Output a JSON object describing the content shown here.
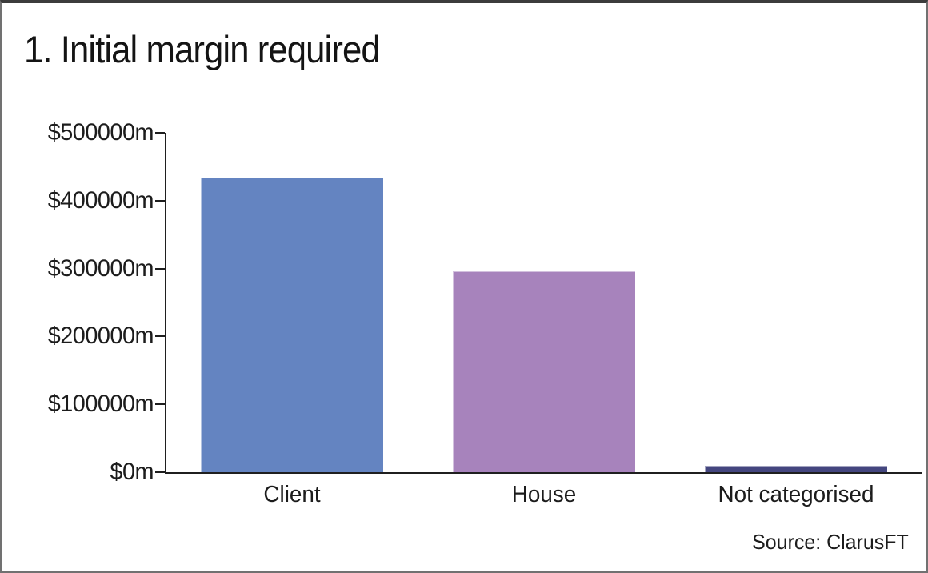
{
  "chart_data": {
    "type": "bar",
    "title": "1. Initial margin required",
    "categories": [
      "Client",
      "House",
      "Not categorised"
    ],
    "values": [
      434000,
      296000,
      10000
    ],
    "unit": "$m",
    "ylim": [
      0,
      500000
    ],
    "ytick_interval": 100000,
    "ytick_labels": [
      "$0m",
      "$100000m",
      "$200000m",
      "$300000m",
      "$400000m",
      "$500000m"
    ],
    "bar_colors": [
      "#6484C1",
      "#A783BC",
      "#44467F"
    ],
    "axis_color": "#1f1f1f",
    "grid": false,
    "legend": false,
    "source": "Source: ClarusFT"
  }
}
